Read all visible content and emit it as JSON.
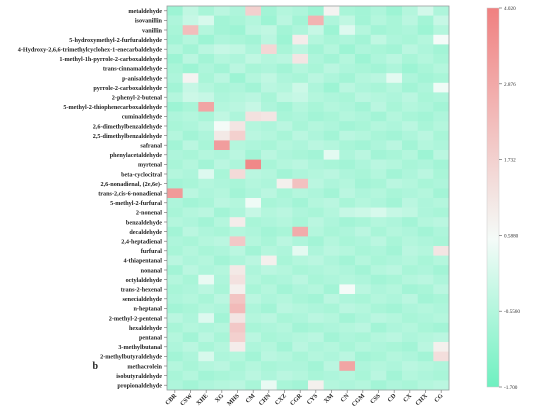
{
  "chart_data": {
    "type": "heatmap",
    "title": "",
    "xlabel": "",
    "ylabel": "",
    "panel_label": "b",
    "x": [
      "CBR",
      "CSW",
      "XHE",
      "XG",
      "MHS",
      "CM",
      "CHN",
      "CXZ",
      "CGR",
      "CYS",
      "XM",
      "CN",
      "CGM",
      "CSS",
      "CD",
      "CX",
      "CHX",
      "CG"
    ],
    "y": [
      "metaldehyde",
      "isovanillin",
      "vanillin",
      "5-hydroxymethyl-2-furfuraldehyde",
      "4-Hydroxy-2,6,6-trimethylcyclohex-1-enecarbaldehyde",
      "1-methyl-1h-pyrrole-2-carboxaldehyde",
      "trans-cinnamaldehyde",
      "p-anisaldehyde",
      "pyrrole-2-carboxaldehyde",
      "2-phenyl-2-butenal",
      "5-methyl-2-thiophenecarboxaldehyde",
      "cuminaldehyde",
      "2,6-dimethylbenzaldehyde",
      "2,5-dimethylbenzaldehyde",
      "safranal",
      "phenylacetaldehyde",
      "myrtenal",
      "beta-cyclocitral",
      "2,6-nonadienal, (2e,6e)-",
      "trans-2,cis-6-nonadienal",
      "5-methyl-2-furfural",
      "2-nonenal",
      "benzaldehyde",
      "decaldehyde",
      "2,4-heptadienal",
      "furfural",
      "4-thiapentanal",
      "nonanal",
      "octylaldehyde",
      "trans-2-hexenal",
      "senecialdehyde",
      "n-heptanal",
      "2-methyl-2-pentenal",
      "hexaldehyde",
      "pentanal",
      "3-methylbutanal",
      "2-methylbutyraldehyde",
      "methacrolein",
      "isobutyraldehyde",
      "propionaldehyde"
    ],
    "values": [
      [
        -0.9,
        -0.3,
        -0.7,
        -0.4,
        -0.6,
        1.8,
        -0.8,
        -0.5,
        -0.6,
        -0.9,
        0.8,
        -0.7,
        -0.8,
        -0.6,
        -0.9,
        -0.5,
        0.0,
        -0.6
      ],
      [
        -0.6,
        -0.2,
        0.1,
        -0.8,
        -0.7,
        -0.5,
        -0.9,
        -0.4,
        -0.8,
        2.6,
        -0.6,
        -0.3,
        -0.8,
        -0.5,
        -0.7,
        -0.4,
        -0.8,
        -0.2
      ],
      [
        -0.7,
        2.3,
        -0.5,
        -0.8,
        -0.9,
        -0.4,
        -0.3,
        -0.8,
        -0.6,
        -0.2,
        -0.9,
        0.2,
        -0.5,
        -0.8,
        -0.7,
        -0.6,
        -0.9,
        -0.5
      ],
      [
        -0.8,
        -0.5,
        -0.9,
        -0.6,
        -0.7,
        -0.8,
        -0.4,
        -0.9,
        1.0,
        -0.5,
        -0.7,
        -0.6,
        -0.8,
        -0.3,
        -0.6,
        -0.7,
        -0.5,
        0.6
      ],
      [
        -0.5,
        -0.8,
        -0.4,
        -0.2,
        -0.3,
        -0.6,
        1.6,
        -0.7,
        -0.4,
        -0.8,
        -0.5,
        -0.9,
        -0.6,
        -0.7,
        -0.8,
        -0.4,
        -0.6,
        -0.8
      ],
      [
        -0.9,
        -0.4,
        -0.8,
        -0.5,
        -0.6,
        -0.3,
        -0.5,
        -0.4,
        1.2,
        -0.6,
        -0.8,
        -0.5,
        -0.9,
        -0.6,
        -0.4,
        -0.7,
        -0.5,
        -0.7
      ],
      [
        -0.7,
        -0.9,
        -0.6,
        -0.8,
        -0.4,
        -0.7,
        -0.6,
        -0.8,
        -0.5,
        -0.7,
        -0.4,
        -0.6,
        -0.7,
        -0.8,
        -0.6,
        -0.9,
        -0.7,
        -0.5
      ],
      [
        -0.6,
        0.8,
        -0.7,
        -0.4,
        -0.9,
        -0.5,
        -0.3,
        -0.6,
        -0.7,
        -0.4,
        -0.6,
        -0.8,
        -0.5,
        -0.4,
        0.3,
        -0.6,
        -0.8,
        -0.7
      ],
      [
        -0.8,
        -0.2,
        -0.5,
        -0.7,
        -0.6,
        -0.8,
        -0.4,
        -0.5,
        -0.1,
        -0.6,
        -0.9,
        -0.4,
        -0.6,
        -0.7,
        -0.5,
        -0.8,
        -0.6,
        0.5
      ],
      [
        -0.5,
        -0.1,
        -0.2,
        -0.6,
        -0.5,
        -0.4,
        -0.7,
        -0.3,
        -0.2,
        -0.5,
        -0.6,
        -0.7,
        -0.4,
        -0.5,
        -0.6,
        -0.4,
        -0.7,
        -0.6
      ],
      [
        -0.9,
        -0.7,
        3.0,
        -0.5,
        -0.4,
        -0.2,
        -0.6,
        -0.8,
        -0.5,
        -0.7,
        -0.5,
        -0.6,
        -0.8,
        -0.4,
        -0.7,
        -0.5,
        -0.6,
        -0.8
      ],
      [
        -0.6,
        -0.5,
        -0.7,
        -0.3,
        -0.6,
        1.3,
        1.2,
        -0.7,
        -0.6,
        -0.8,
        -0.7,
        -0.5,
        -0.6,
        -0.8,
        -0.5,
        -0.7,
        -0.8,
        -0.6
      ],
      [
        -0.7,
        -0.6,
        -0.4,
        0.6,
        1.2,
        -0.5,
        -0.6,
        -0.4,
        -0.7,
        -0.5,
        -0.6,
        -0.8,
        -0.7,
        -0.5,
        -0.6,
        -0.4,
        -0.7,
        -0.5
      ],
      [
        -0.5,
        -0.8,
        -0.6,
        1.1,
        1.8,
        -0.4,
        -0.5,
        -0.7,
        -0.4,
        -0.6,
        -0.8,
        -0.4,
        -0.5,
        -0.7,
        -0.8,
        -0.6,
        -0.4,
        -0.7
      ],
      [
        -0.8,
        -0.4,
        -0.7,
        3.2,
        -0.5,
        -0.6,
        -0.7,
        -0.5,
        -0.6,
        -0.4,
        -0.5,
        -0.7,
        -0.8,
        -0.6,
        -0.4,
        -0.8,
        -0.5,
        -0.6
      ],
      [
        -0.6,
        -0.7,
        -0.5,
        -0.6,
        -0.4,
        -0.8,
        -0.4,
        -0.6,
        -0.7,
        -0.8,
        0.3,
        -0.6,
        -0.4,
        -0.8,
        -0.7,
        -0.5,
        -0.9,
        -0.4
      ],
      [
        -0.7,
        -0.5,
        -0.8,
        -0.4,
        -0.6,
        3.8,
        -0.7,
        -0.5,
        -0.4,
        -0.6,
        -0.7,
        -0.8,
        -0.6,
        -0.4,
        -0.5,
        -0.7,
        -0.6,
        -0.8
      ],
      [
        -0.5,
        -0.6,
        0.2,
        -0.7,
        1.5,
        -0.4,
        -0.5,
        -0.8,
        -0.6,
        -0.5,
        -0.4,
        -0.6,
        -0.7,
        -0.5,
        -0.8,
        -0.6,
        -0.4,
        -0.7
      ],
      [
        -0.8,
        -0.7,
        -0.5,
        -0.6,
        -0.7,
        -0.5,
        -0.6,
        0.9,
        2.2,
        -0.4,
        -0.6,
        -0.5,
        -0.8,
        -0.7,
        -0.4,
        -0.5,
        -0.7,
        -0.6
      ],
      [
        3.3,
        -0.4,
        -0.6,
        -0.5,
        -0.8,
        -0.6,
        -0.4,
        -0.7,
        -0.5,
        -0.6,
        -0.8,
        -0.4,
        -0.6,
        -0.5,
        -0.7,
        -0.6,
        -0.5,
        -0.8
      ],
      [
        -0.6,
        -0.8,
        -0.7,
        -0.4,
        -0.5,
        0.5,
        -0.7,
        -0.6,
        -0.8,
        -0.5,
        -0.4,
        -0.7,
        -0.5,
        -0.6,
        -0.8,
        -0.4,
        -0.6,
        -0.5
      ],
      [
        -0.7,
        -0.5,
        -0.4,
        -0.8,
        -0.6,
        -0.2,
        -0.5,
        -0.4,
        -0.6,
        -0.7,
        -0.5,
        -0.2,
        -0.1,
        0.1,
        -0.2,
        -0.3,
        -0.6,
        -0.7
      ],
      [
        -0.5,
        -0.6,
        -0.8,
        -0.5,
        1.0,
        -0.7,
        -0.6,
        -0.5,
        -0.7,
        -0.4,
        -0.6,
        -0.8,
        -0.7,
        -0.5,
        -0.6,
        -0.8,
        -0.5,
        -0.4
      ],
      [
        -0.8,
        -0.4,
        -0.6,
        -0.7,
        -0.5,
        -0.6,
        -0.8,
        -0.7,
        2.8,
        -0.5,
        -0.7,
        -0.6,
        -0.4,
        -0.7,
        -0.5,
        -0.6,
        -0.8,
        -0.6
      ],
      [
        -0.6,
        -0.7,
        -0.5,
        -0.4,
        2.0,
        -0.5,
        -0.7,
        -0.4,
        -0.6,
        -0.8,
        -0.5,
        -0.7,
        -0.6,
        -0.4,
        -0.7,
        -0.5,
        -0.6,
        -0.7
      ],
      [
        -0.7,
        -0.5,
        -0.7,
        -0.6,
        -0.4,
        -0.8,
        -0.5,
        -0.6,
        0.3,
        -0.6,
        -0.4,
        -0.5,
        -0.7,
        -0.6,
        -0.8,
        -0.4,
        -0.5,
        1.2
      ],
      [
        -0.4,
        -0.6,
        -0.5,
        -0.8,
        -0.6,
        -0.4,
        0.9,
        -0.7,
        -0.5,
        -0.4,
        -0.6,
        -0.8,
        -0.5,
        -0.7,
        -0.6,
        -0.5,
        -0.7,
        -0.5
      ],
      [
        -0.8,
        -0.4,
        -0.6,
        -0.5,
        1.1,
        -0.6,
        -0.4,
        -0.5,
        -0.7,
        -0.6,
        -0.5,
        -0.6,
        -0.8,
        -0.5,
        -0.4,
        -0.7,
        -0.6,
        -0.8
      ],
      [
        -0.5,
        -0.7,
        0.4,
        -0.6,
        1.3,
        -0.5,
        -0.7,
        -0.6,
        -0.4,
        -0.7,
        -0.6,
        -0.5,
        -0.6,
        -0.8,
        -0.7,
        -0.5,
        -0.4,
        -0.6
      ],
      [
        -0.7,
        -0.6,
        -0.4,
        -0.7,
        0.9,
        -0.7,
        -0.5,
        -0.8,
        -0.6,
        -0.5,
        -0.8,
        0.6,
        -0.4,
        -0.6,
        -0.5,
        -0.8,
        -0.7,
        -0.4
      ],
      [
        -0.6,
        -0.5,
        -0.7,
        -0.4,
        2.1,
        -0.4,
        -0.6,
        -0.5,
        -0.7,
        -0.8,
        -0.4,
        -0.6,
        -0.7,
        -0.5,
        -0.6,
        -0.4,
        -0.8,
        -0.7
      ],
      [
        -0.8,
        -0.7,
        -0.5,
        -0.6,
        2.4,
        -0.6,
        -0.8,
        -0.4,
        -0.5,
        -0.6,
        -0.7,
        -0.4,
        -0.5,
        -0.7,
        -0.8,
        -0.6,
        -0.5,
        -0.6
      ],
      [
        -0.4,
        -0.6,
        0.2,
        -0.8,
        1.2,
        -0.5,
        -0.4,
        -0.7,
        -0.6,
        -0.4,
        -0.5,
        -0.8,
        -0.6,
        -0.4,
        -0.5,
        -0.7,
        -0.6,
        -0.5
      ],
      [
        -0.7,
        -0.5,
        -0.6,
        -0.5,
        2.0,
        -0.7,
        -0.6,
        -0.5,
        -0.8,
        -0.7,
        -0.6,
        -0.5,
        -0.4,
        -0.8,
        -0.6,
        -0.5,
        -0.7,
        -0.8
      ],
      [
        -0.5,
        -0.8,
        -0.4,
        -0.7,
        1.8,
        -0.4,
        -0.7,
        -0.6,
        -0.5,
        -0.4,
        -0.8,
        -0.6,
        -0.7,
        -0.5,
        -0.4,
        -0.6,
        -0.5,
        -0.4
      ],
      [
        -0.6,
        -0.4,
        -0.7,
        -0.5,
        1.0,
        -0.6,
        -0.5,
        -0.8,
        -0.4,
        -0.6,
        -0.5,
        -0.7,
        -0.5,
        -0.6,
        -0.7,
        -0.8,
        -0.4,
        0.9
      ],
      [
        -0.8,
        -0.6,
        0.1,
        -0.6,
        -0.5,
        -0.8,
        -0.4,
        -0.5,
        -0.7,
        -0.5,
        -0.6,
        -0.4,
        -0.8,
        -0.7,
        -0.5,
        -0.6,
        -0.8,
        1.4
      ],
      [
        -0.5,
        -0.7,
        -0.5,
        -0.4,
        -0.7,
        -0.5,
        -0.7,
        -0.6,
        -0.6,
        -0.8,
        -0.4,
        3.0,
        -0.6,
        -0.5,
        -0.6,
        -0.4,
        -0.5,
        -0.6
      ],
      [
        -0.7,
        -0.5,
        -0.8,
        -0.7,
        -0.6,
        -0.4,
        -0.6,
        -0.4,
        -0.5,
        -0.7,
        -0.6,
        -0.5,
        -0.7,
        -0.4,
        -0.8,
        -0.5,
        -0.6,
        -0.7
      ],
      [
        -0.6,
        -0.8,
        -0.6,
        -0.5,
        -0.4,
        -0.7,
        0.4,
        -0.7,
        -0.8,
        0.9,
        -0.5,
        -0.6,
        -0.5,
        -0.8,
        -0.6,
        -0.7,
        -0.5,
        -0.4
      ]
    ],
    "colorbar": {
      "min": -1.7,
      "max": 4.02,
      "ticks": [
        "4.020",
        "2.876",
        "1.732",
        "0.5880",
        "-0.5560",
        "-1.700"
      ],
      "color_low": "#6ef0c0",
      "color_mid": "#f4fbf8",
      "color_high": "#f08080"
    },
    "grid": false,
    "legend": "colorbar-right"
  }
}
